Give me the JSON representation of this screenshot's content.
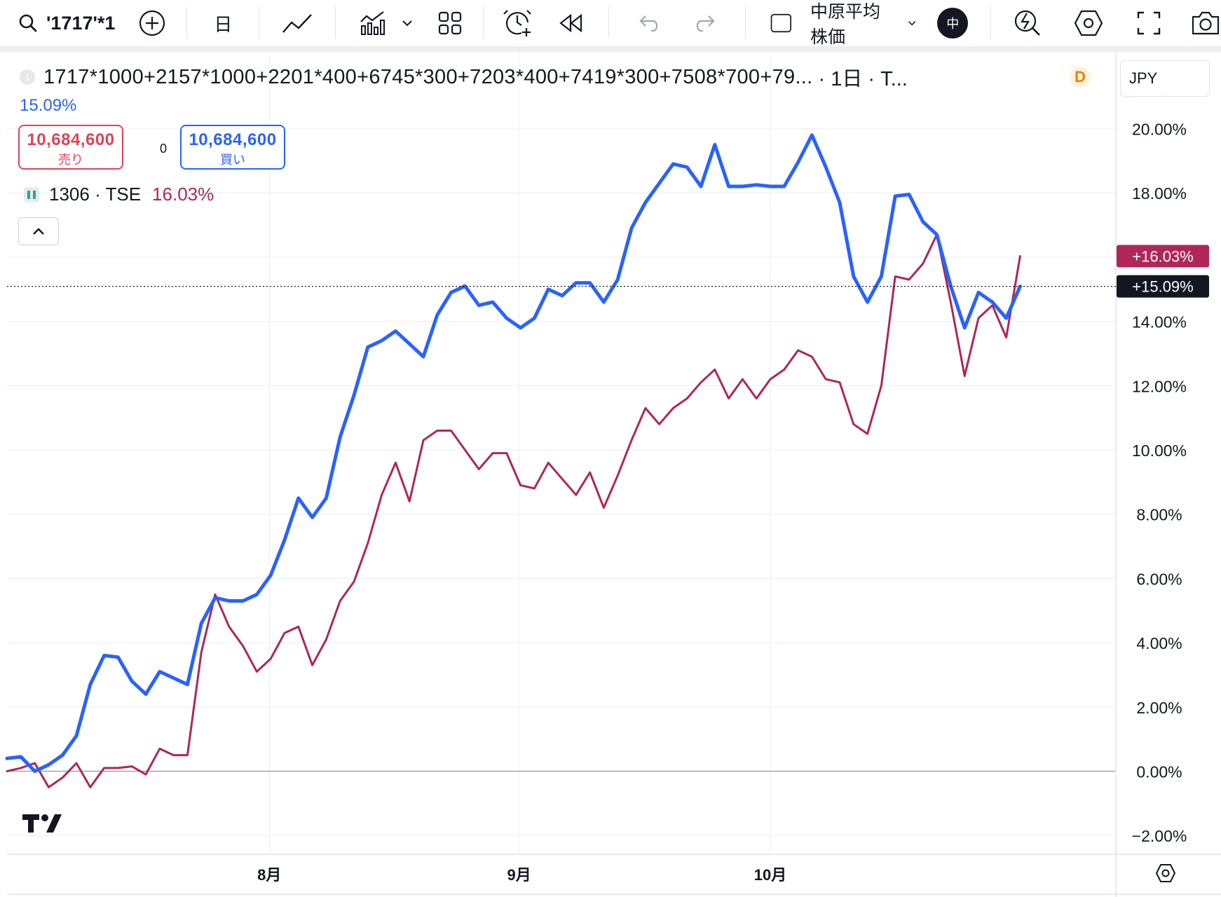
{
  "toolbar": {
    "symbol_search": "'1717'*1",
    "interval": "日",
    "index_label": "中原平均株価",
    "lang_badge": "中",
    "icons": [
      "search-icon",
      "add-symbol-icon",
      "line-chart-icon",
      "indicators-icon",
      "chevron-down-icon",
      "layout-grid-icon",
      "alert-clock-icon",
      "replay-icon",
      "undo-icon",
      "redo-icon",
      "checkbox-icon",
      "chevron-down-icon",
      "lightning-icon",
      "settings-icon",
      "fullscreen-icon",
      "camera-icon"
    ]
  },
  "legend": {
    "badge": "1",
    "title": "1717*1000+2157*1000+2201*400+6745*300+7203*400+7419*300+7508*700+79...",
    "suffix": "· 1日 · T...",
    "d_badge": "D",
    "main_pct": "15.09%",
    "sell_value": "10,684,600",
    "sell_label": "売り",
    "spread": "0",
    "buy_value": "10,684,600",
    "buy_label": "買い",
    "compare_symbol": "1306 · TSE",
    "compare_pct": "16.03%"
  },
  "currency": "JPY",
  "chart_data": {
    "type": "line",
    "x_ticks": [
      "8月",
      "9月",
      "10月"
    ],
    "y_ticks": [
      "20.00%",
      "18.00%",
      "16.00%",
      "14.00%",
      "12.00%",
      "10.00%",
      "8.00%",
      "6.00%",
      "4.00%",
      "2.00%",
      "0.00%",
      "−2.00%"
    ],
    "ylim": [
      -2.5,
      21.3
    ],
    "grid": true,
    "series": [
      {
        "name": "1717*1000+2157*1000+2201*400+6745*300+7203*400+7419*300+7508*700+79...",
        "color": "#2962ff",
        "last_label": "+15.09%",
        "values": [
          0.4,
          0.45,
          0.0,
          0.2,
          0.5,
          1.1,
          2.7,
          3.6,
          3.55,
          2.8,
          2.4,
          3.1,
          2.9,
          2.7,
          4.6,
          5.4,
          5.3,
          5.3,
          5.5,
          6.1,
          7.2,
          8.5,
          7.9,
          8.5,
          10.4,
          11.7,
          13.2,
          13.4,
          13.7,
          13.3,
          12.9,
          14.2,
          14.9,
          15.1,
          14.5,
          14.6,
          14.1,
          13.8,
          14.1,
          15.0,
          14.8,
          15.2,
          15.2,
          14.6,
          15.3,
          16.9,
          17.7,
          18.3,
          18.9,
          18.8,
          18.2,
          19.5,
          18.2,
          18.2,
          18.25,
          18.2,
          18.2,
          18.95,
          19.8,
          18.8,
          17.7,
          15.4,
          14.6,
          15.4,
          17.9,
          17.95,
          17.1,
          16.7,
          15.1,
          13.8,
          14.9,
          14.6,
          14.1,
          15.09
        ]
      },
      {
        "name": "1306 · TSE",
        "color": "#b02657",
        "last_label": "+16.03%",
        "values": [
          0.0,
          0.1,
          0.25,
          -0.5,
          -0.2,
          0.25,
          -0.5,
          0.1,
          0.1,
          0.15,
          -0.1,
          0.7,
          0.5,
          0.5,
          3.7,
          5.5,
          4.5,
          3.9,
          3.1,
          3.5,
          4.3,
          4.5,
          3.3,
          4.1,
          5.3,
          5.9,
          7.1,
          8.6,
          9.6,
          8.4,
          10.3,
          10.6,
          10.6,
          10.0,
          9.4,
          9.9,
          9.9,
          8.9,
          8.8,
          9.6,
          9.1,
          8.6,
          9.3,
          8.2,
          9.2,
          10.3,
          11.3,
          10.8,
          11.3,
          11.6,
          12.1,
          12.5,
          11.6,
          12.2,
          11.6,
          12.2,
          12.5,
          13.1,
          12.9,
          12.2,
          12.1,
          10.8,
          10.5,
          12.0,
          15.4,
          15.3,
          15.8,
          16.7,
          14.6,
          12.3,
          14.1,
          14.5,
          13.5,
          16.03
        ]
      }
    ]
  }
}
